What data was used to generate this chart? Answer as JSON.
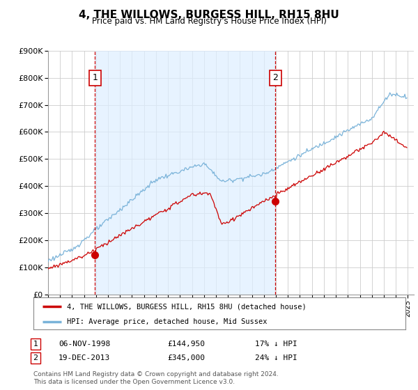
{
  "title": "4, THE WILLOWS, BURGESS HILL, RH15 8HU",
  "subtitle": "Price paid vs. HM Land Registry's House Price Index (HPI)",
  "legend_line1": "4, THE WILLOWS, BURGESS HILL, RH15 8HU (detached house)",
  "legend_line2": "HPI: Average price, detached house, Mid Sussex",
  "annotation1_label": "1",
  "annotation1_date": "06-NOV-1998",
  "annotation1_price": "£144,950",
  "annotation1_hpi": "17% ↓ HPI",
  "annotation2_label": "2",
  "annotation2_date": "19-DEC-2013",
  "annotation2_price": "£345,000",
  "annotation2_hpi": "24% ↓ HPI",
  "footer": "Contains HM Land Registry data © Crown copyright and database right 2024.\nThis data is licensed under the Open Government Licence v3.0.",
  "red_color": "#cc0000",
  "blue_color": "#7ab3d9",
  "blue_fill_color": "#ddeeff",
  "vline_color": "#cc0000",
  "grid_color": "#cccccc",
  "background_color": "#ffffff",
  "ylim": [
    0,
    900000
  ],
  "xlim_start": 1995.0,
  "xlim_end": 2025.5,
  "sale1_x": 1998.92,
  "sale1_y": 144950,
  "sale2_x": 2013.96,
  "sale2_y": 345000
}
